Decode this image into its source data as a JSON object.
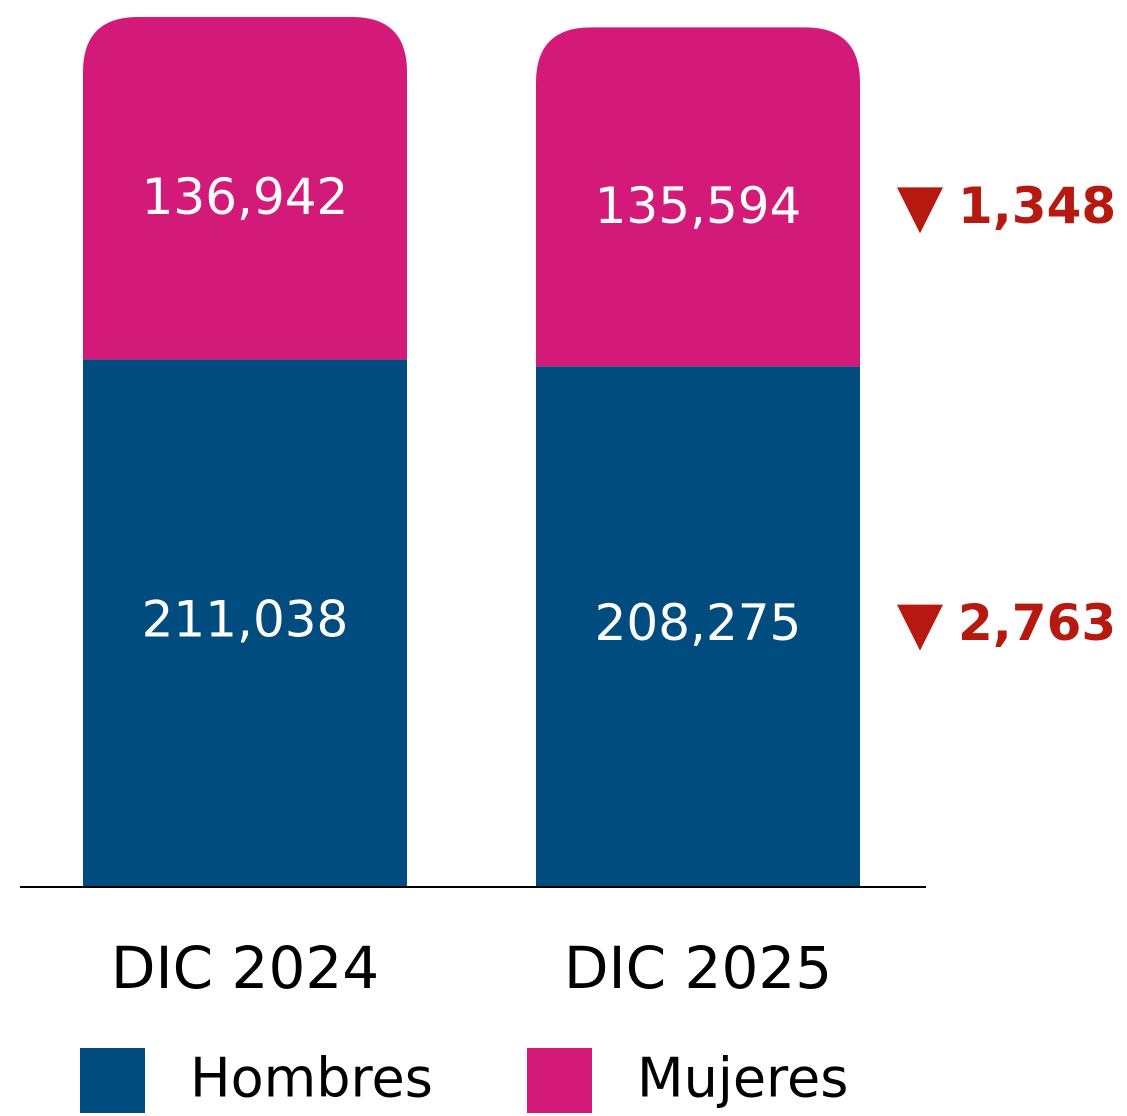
{
  "chart_data": {
    "type": "stacked_bar",
    "categories": [
      "DIC 2024",
      "DIC 2025"
    ],
    "series": [
      {
        "name": "Hombres",
        "color": "#004c7e",
        "values": [
          211038,
          208275
        ],
        "value_labels": [
          "211,038",
          "208,275"
        ]
      },
      {
        "name": "Mujeres",
        "color": "#d41a78",
        "values": [
          136942,
          135594
        ],
        "value_labels": [
          "136,942",
          "135,594"
        ]
      }
    ],
    "annotations": [
      "1,348",
      "2,763"
    ],
    "annotation_color": "#b5190f",
    "ylim": [
      0,
      350000
    ]
  }
}
